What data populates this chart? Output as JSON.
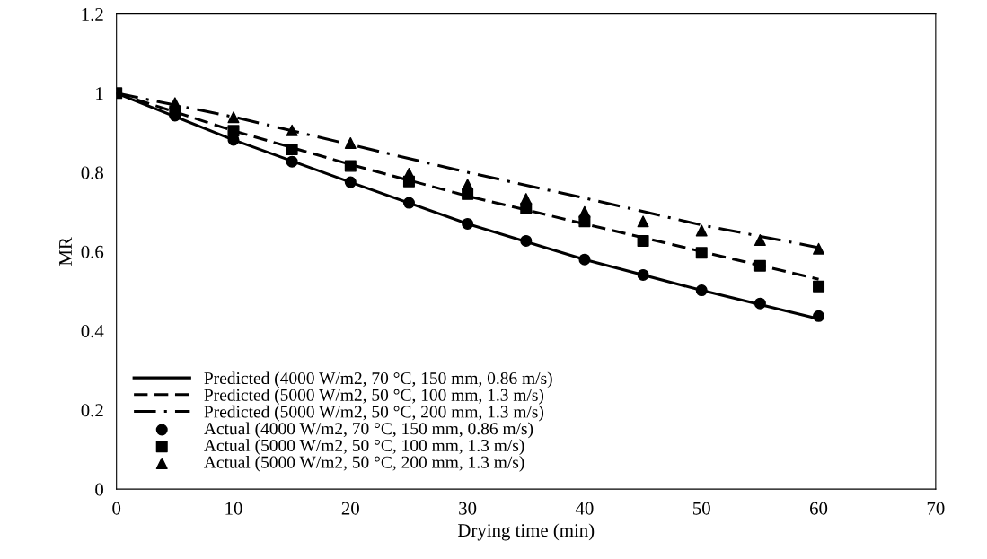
{
  "chart_data": {
    "type": "line",
    "xlabel": "Drying time (min)",
    "ylabel": "MR",
    "xlim": [
      0,
      70
    ],
    "xticks": [
      0,
      10,
      20,
      30,
      40,
      50,
      60,
      70
    ],
    "ylim": [
      0,
      1.2
    ],
    "yticks": [
      0,
      0.2,
      0.4,
      0.6,
      0.8,
      1,
      1.2
    ],
    "grid": false,
    "legend": "bottom left",
    "series": [
      {
        "name": "Predicted (4000 W/m2, 70 °C, 150 mm, 0.86 m/s)",
        "color": "#000000",
        "line_style": "solid",
        "marker": "none",
        "x": [
          0,
          10,
          20,
          30,
          40,
          50,
          60
        ],
        "values": [
          1,
          0.882,
          0.775,
          0.67,
          0.58,
          0.502,
          0.43
        ]
      },
      {
        "name": "Predicted (5000 W/m2, 50 °C, 100 mm, 1.3 m/s)",
        "color": "#000000",
        "line_style": "dashed",
        "marker": "none",
        "x": [
          0,
          10,
          20,
          30,
          40,
          50,
          60
        ],
        "values": [
          1,
          0.905,
          0.82,
          0.74,
          0.67,
          0.6,
          0.53
        ]
      },
      {
        "name": "Predicted (5000 W/m2, 50 °C, 200 mm, 1.3 m/s)",
        "color": "#000000",
        "line_style": "dashdot",
        "marker": "none",
        "x": [
          0,
          10,
          20,
          30,
          40,
          50,
          60
        ],
        "values": [
          1,
          0.94,
          0.87,
          0.8,
          0.735,
          0.667,
          0.61
        ]
      },
      {
        "name": "Actual (4000 W/m2, 70 °C, 150 mm, 0.86 m/s)",
        "type": "scatter",
        "color": "#000000",
        "marker": "circle",
        "x": [
          5,
          10,
          15,
          20,
          25,
          30,
          35,
          40,
          45,
          50,
          55,
          60
        ],
        "values": [
          0.943,
          0.882,
          0.827,
          0.775,
          0.723,
          0.67,
          0.627,
          0.58,
          0.541,
          0.502,
          0.469,
          0.437
        ]
      },
      {
        "name": "Actual (5000 W/m2, 50 °C, 100 mm, 1.3 m/s)",
        "type": "scatter",
        "color": "#000000",
        "marker": "square",
        "x": [
          0,
          5,
          10,
          15,
          20,
          25,
          30,
          35,
          40,
          45,
          50,
          55,
          60
        ],
        "values": [
          1,
          0.955,
          0.905,
          0.858,
          0.816,
          0.777,
          0.745,
          0.709,
          0.676,
          0.627,
          0.597,
          0.564,
          0.512
        ]
      },
      {
        "name": "Actual (5000 W/m2, 50 °C, 200 mm, 1.3 m/s)",
        "type": "scatter",
        "color": "#000000",
        "marker": "triangle",
        "x": [
          5,
          10,
          15,
          20,
          25,
          30,
          35,
          40,
          45,
          50,
          55,
          60
        ],
        "values": [
          0.975,
          0.939,
          0.906,
          0.874,
          0.797,
          0.769,
          0.733,
          0.7,
          0.676,
          0.653,
          0.629,
          0.607
        ]
      }
    ]
  }
}
